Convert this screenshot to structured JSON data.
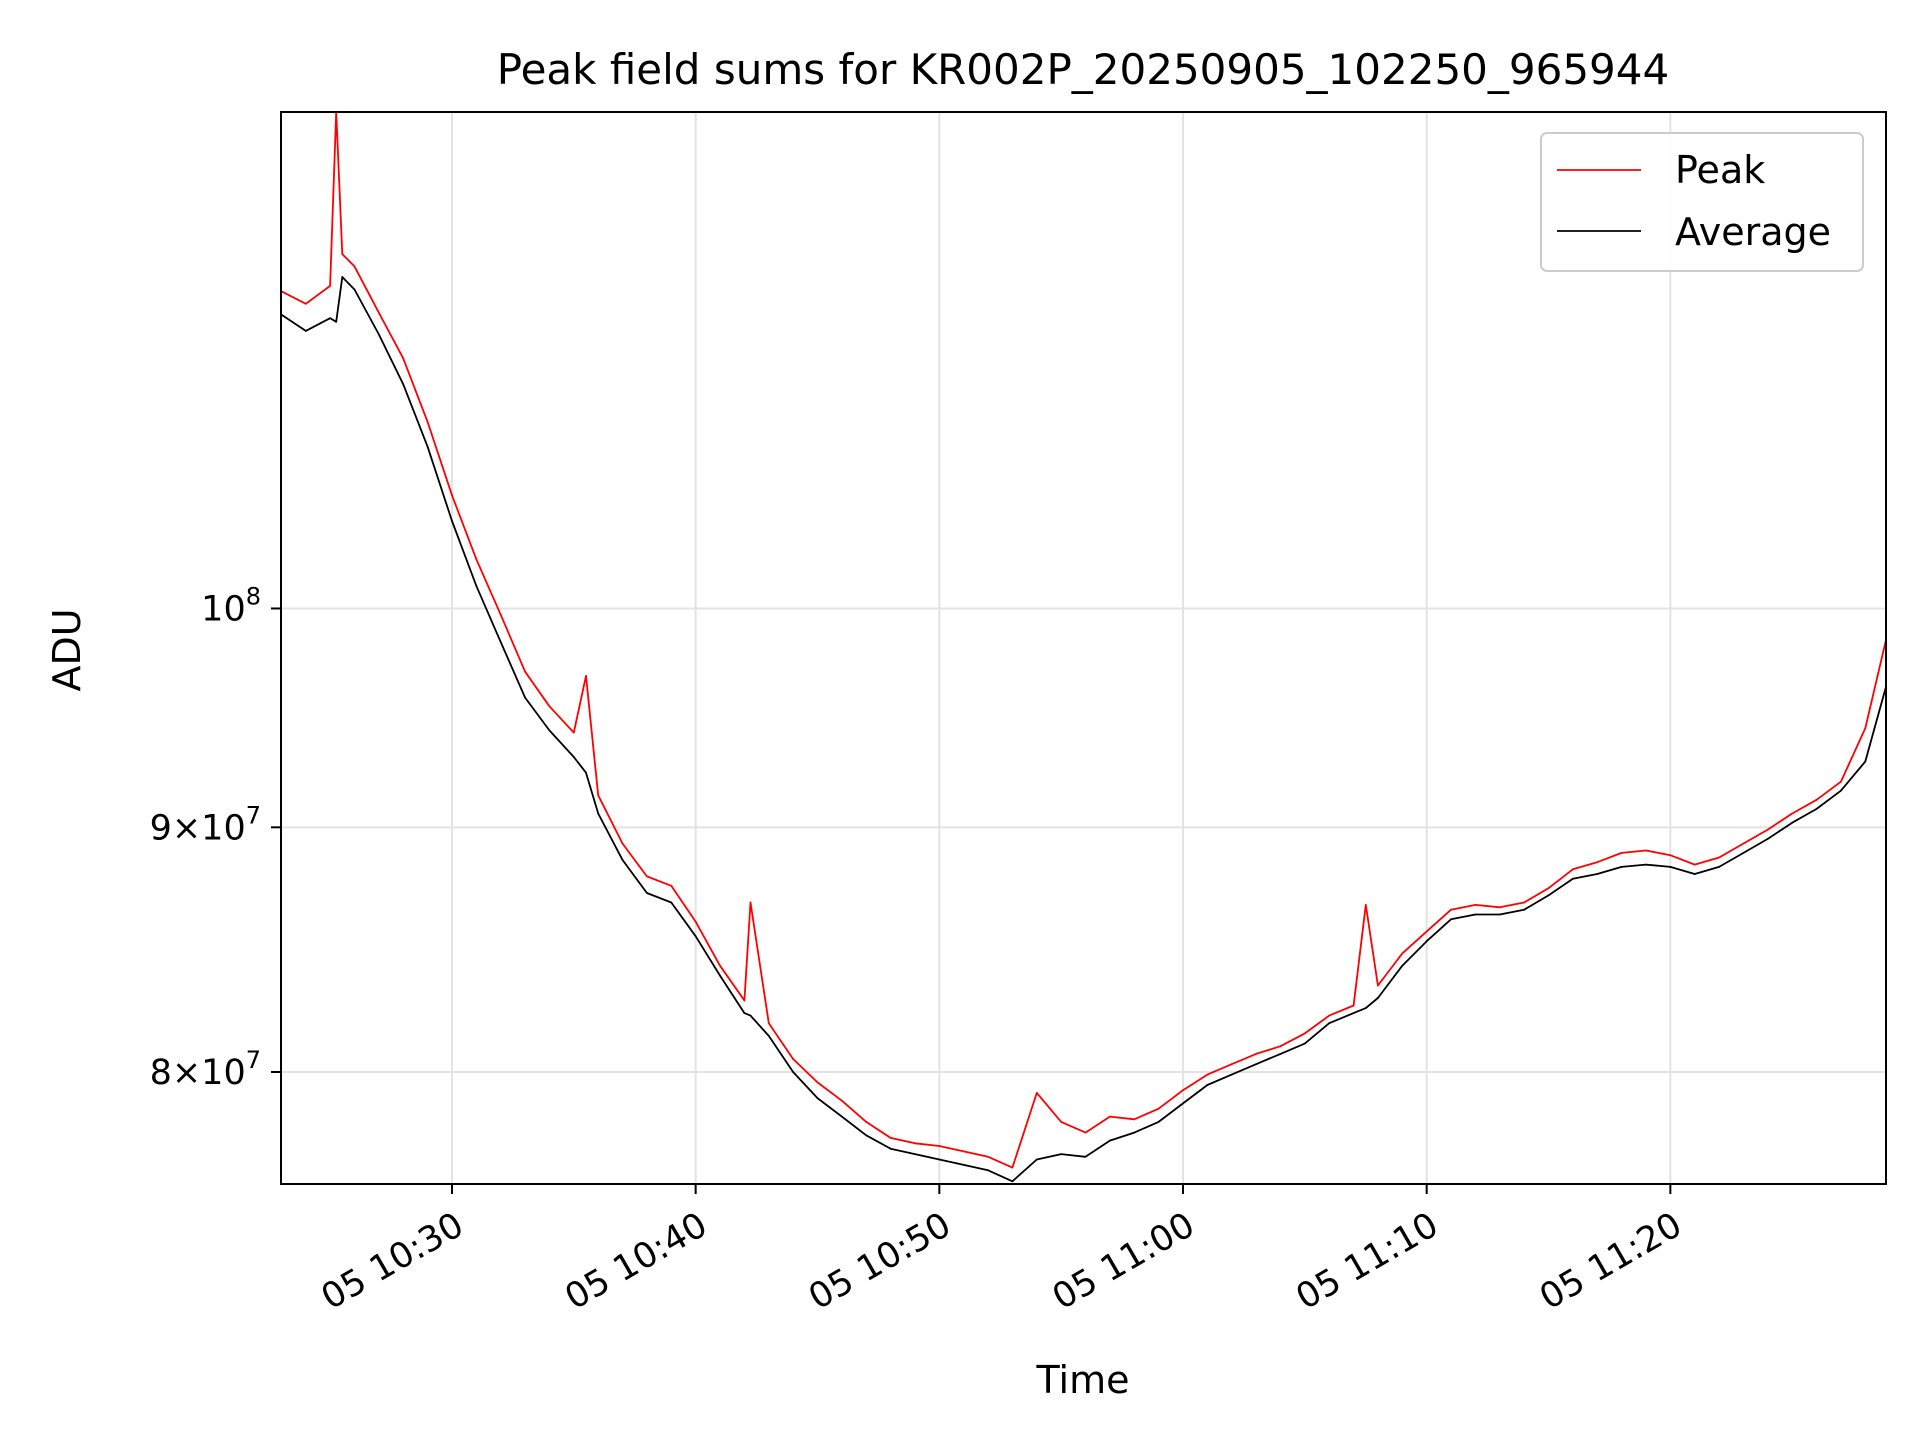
{
  "chart_data": {
    "type": "line",
    "title": "Peak field sums for KR002P_20250905_102250_965944",
    "xlabel": "Time",
    "ylabel": "ADU",
    "y_scale": "log",
    "ylim": [
      75800000,
      127000000
    ],
    "xlim": [
      "05 10:22:59",
      "05 11:28:51"
    ],
    "grid": true,
    "legend_position": "upper right",
    "x_ticks": [
      "05 10:30",
      "05 10:40",
      "05 10:50",
      "05 11:00",
      "05 11:10",
      "05 11:20"
    ],
    "y_ticks": [
      {
        "value": 80000000,
        "mantissa": "8",
        "exponent": "7"
      },
      {
        "value": 90000000,
        "mantissa": "9",
        "exponent": "7"
      },
      {
        "value": 100000000,
        "mantissa": "",
        "exponent": "8"
      }
    ],
    "x": [
      "05 10:23",
      "05 10:24",
      "05 10:25",
      "05 10:25:15",
      "05 10:25:30",
      "05 10:26",
      "05 10:27",
      "05 10:28",
      "05 10:29",
      "05 10:30",
      "05 10:31",
      "05 10:32",
      "05 10:33",
      "05 10:34",
      "05 10:35",
      "05 10:35:30",
      "05 10:36",
      "05 10:37",
      "05 10:38",
      "05 10:39",
      "05 10:40",
      "05 10:41",
      "05 10:42",
      "05 10:42:15",
      "05 10:43",
      "05 10:44",
      "05 10:45",
      "05 10:46",
      "05 10:47",
      "05 10:48",
      "05 10:49",
      "05 10:50",
      "05 10:51",
      "05 10:52",
      "05 10:53",
      "05 10:54",
      "05 10:55",
      "05 10:56",
      "05 10:57",
      "05 10:58",
      "05 10:59",
      "05 11:00",
      "05 11:01",
      "05 11:02",
      "05 11:03",
      "05 11:04",
      "05 11:05",
      "05 11:06",
      "05 11:07",
      "05 11:07:30",
      "05 11:08",
      "05 11:09",
      "05 11:10",
      "05 11:11",
      "05 11:12",
      "05 11:13",
      "05 11:14",
      "05 11:15",
      "05 11:16",
      "05 11:17",
      "05 11:18",
      "05 11:19",
      "05 11:20",
      "05 11:21",
      "05 11:22",
      "05 11:23",
      "05 11:24",
      "05 11:25",
      "05 11:26",
      "05 11:27",
      "05 11:28",
      "05 11:28:51"
    ],
    "series": [
      {
        "name": "Peak",
        "color": "#ff0000",
        "values": [
          116500000,
          115800000,
          116800000,
          127000000,
          118600000,
          117900000,
          115300000,
          112800000,
          109400000,
          105600000,
          102400000,
          99700000,
          97000000,
          95400000,
          94200000,
          96800000,
          91400000,
          89300000,
          87900000,
          87500000,
          86000000,
          84200000,
          82800000,
          86800000,
          81900000,
          80500000,
          79600000,
          78900000,
          78100000,
          77500000,
          77300000,
          77200000,
          77000000,
          76800000,
          76400000,
          79200000,
          78100000,
          77700000,
          78300000,
          78200000,
          78600000,
          79300000,
          79900000,
          80300000,
          80700000,
          81000000,
          81500000,
          82200000,
          82600000,
          86700000,
          83400000,
          84700000,
          85600000,
          86500000,
          86700000,
          86600000,
          86800000,
          87400000,
          88200000,
          88500000,
          88900000,
          89000000,
          88800000,
          88400000,
          88700000,
          89300000,
          89900000,
          90600000,
          91200000,
          92000000,
          94400000,
          98500000
        ]
      },
      {
        "name": "Average",
        "color": "#000000",
        "values": [
          115200000,
          114300000,
          115000000,
          114800000,
          117300000,
          116600000,
          114100000,
          111400000,
          108100000,
          104300000,
          101100000,
          98400000,
          95800000,
          94300000,
          93100000,
          92400000,
          90600000,
          88600000,
          87200000,
          86800000,
          85400000,
          83800000,
          82300000,
          82200000,
          81400000,
          80000000,
          79000000,
          78300000,
          77600000,
          77100000,
          76900000,
          76700000,
          76500000,
          76300000,
          75900000,
          76700000,
          76900000,
          76800000,
          77400000,
          77700000,
          78100000,
          78800000,
          79500000,
          79900000,
          80300000,
          80700000,
          81100000,
          81900000,
          82300000,
          82500000,
          82900000,
          84200000,
          85200000,
          86100000,
          86300000,
          86300000,
          86500000,
          87100000,
          87800000,
          88000000,
          88300000,
          88400000,
          88300000,
          88000000,
          88300000,
          88900000,
          89500000,
          90200000,
          90800000,
          91600000,
          92900000,
          96300000
        ]
      }
    ]
  }
}
